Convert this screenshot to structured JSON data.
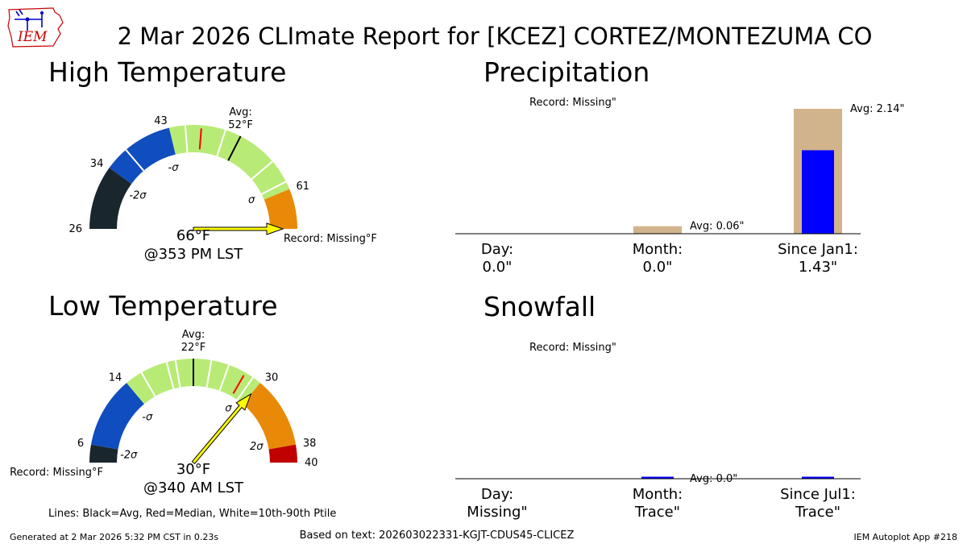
{
  "logo": {
    "text": "IEM",
    "color": "#cc0000",
    "outline_color": "#cc0000",
    "fill": "#ffffff",
    "mark_color": "#0000cc"
  },
  "title": "2 Mar 2026 CLImate Report for [KCEZ] CORTEZ/MONTEZUMA CO",
  "footer": {
    "generated": "Generated at 2 Mar 2026 5:32 PM CST in 0.23s",
    "based_on": "Based on text: 202603022331-KGJT-CDUS45-CLICEZ",
    "app": "IEM Autoplot App #218",
    "legend_note": "Lines: Black=Avg, Red=Median, White=10th-90th Ptile"
  },
  "colors": {
    "below_2sigma": "#1a262d",
    "sigma_neg": "#104dbf",
    "near_normal": "#b8eb76",
    "sigma_pos": "#e88a07",
    "above_2sigma": "#c00000",
    "avg_line": "#000000",
    "median_line": "#ff0000",
    "ptile_line": "#ffffff",
    "arrow": "#ffff00",
    "record_bar": "#d2b48c",
    "obs_bar": "#0000ff"
  },
  "chart_data": [
    {
      "type": "gauge",
      "title": "High Temperature",
      "range": [
        26,
        66
      ],
      "ticks": [
        26,
        34,
        43,
        61
      ],
      "avg": 52,
      "avg_label": "Avg:\n52°F",
      "median": 47,
      "ptiles": [
        37,
        45,
        50,
        57,
        60
      ],
      "bands": [
        {
          "from": 26,
          "to": 34,
          "color": "below_2sigma"
        },
        {
          "from": 34,
          "to": 43,
          "color": "sigma_neg"
        },
        {
          "from": 43,
          "to": 61,
          "color": "near_normal"
        },
        {
          "from": 61,
          "to": 66,
          "color": "sigma_pos"
        }
      ],
      "sigma_labels": [
        {
          "text": "-2σ",
          "value": 33
        },
        {
          "text": "-σ",
          "value": 42
        },
        {
          "text": "σ",
          "value": 60
        }
      ],
      "observed": 66,
      "observed_text": "66°F",
      "time_text": "@353 PM LST",
      "record_text": "Record: Missing°F"
    },
    {
      "type": "gauge",
      "title": "Low Temperature",
      "range": [
        4,
        40
      ],
      "ticks": [
        6,
        14,
        30,
        38,
        40
      ],
      "avg": 22,
      "avg_label": "Avg:\n22°F",
      "median": 28,
      "ptiles": [
        16,
        19,
        20,
        24,
        26,
        29
      ],
      "bands": [
        {
          "from": 4,
          "to": 6,
          "color": "below_2sigma"
        },
        {
          "from": 6,
          "to": 14,
          "color": "sigma_neg"
        },
        {
          "from": 14,
          "to": 30,
          "color": "near_normal"
        },
        {
          "from": 30,
          "to": 38,
          "color": "sigma_pos"
        },
        {
          "from": 38,
          "to": 40,
          "color": "above_2sigma"
        }
      ],
      "sigma_labels": [
        {
          "text": "-2σ",
          "value": 5.5
        },
        {
          "text": "-σ",
          "value": 13
        },
        {
          "text": "σ",
          "value": 28.5
        },
        {
          "text": "2σ",
          "value": 37
        }
      ],
      "observed": 30,
      "observed_text": "30°F",
      "time_text": "@340 AM LST",
      "record_text": "Record: Missing°F"
    },
    {
      "type": "bar",
      "title": "Precipitation",
      "categories": [
        "Day:\n0.0\"",
        "Month:\n0.0\"",
        "Since Jan1:\n1.43\""
      ],
      "series": [
        {
          "values": [
            null,
            0.06,
            2.14
          ]
        },
        {
          "values": [
            0.0,
            0.0,
            1.43
          ]
        }
      ],
      "bar_max": [
        1,
        1,
        2.14
      ],
      "value_labels": [
        "Record: Missing\"",
        "Avg: 0.06\"",
        "Avg: 2.14\""
      ]
    },
    {
      "type": "bar",
      "title": "Snowfall",
      "categories": [
        "Day:\nMissing\"",
        "Month:\nTrace\"",
        "Since Jul1:\nTrace\""
      ],
      "series": [
        {
          "values": [
            null,
            0.0,
            null
          ]
        },
        {
          "values": [
            null,
            0.0001,
            0.0001
          ]
        }
      ],
      "bar_max": [
        1,
        1,
        1
      ],
      "value_labels": [
        "Record: Missing\"",
        "Avg: 0.0\"",
        ""
      ]
    }
  ]
}
